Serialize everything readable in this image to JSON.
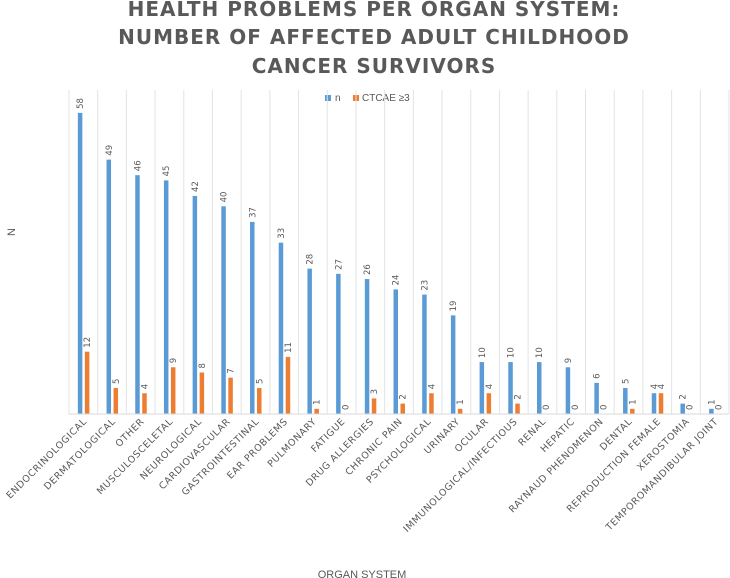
{
  "chart_data": {
    "type": "bar",
    "title_lines": [
      "HEALTH PROBLEMS PER ORGAN SYSTEM:",
      "NUMBER OF AFFECTED ADULT CHILDHOOD",
      "CANCER SURVIVORS"
    ],
    "xlabel": "ORGAN SYSTEM",
    "ylabel": "N",
    "ylim": [
      0,
      60
    ],
    "grid": "vertical-category-separators",
    "legend_position": "top",
    "categories": [
      "ENDOCRINOLOGICAL",
      "DERMATOLOGICAL",
      "OTHER",
      "MUSCULOSCELETAL",
      "NEUROLOGICAL",
      "CARDIOVASCULAR",
      "GASTROINTESTINAL",
      "EAR PROBLEMS",
      "PULMONARY",
      "FATIGUE",
      "DRUG ALLERGIES",
      "CHRONIC PAIN",
      "PSYCHOLOGICAL",
      "URINARY",
      "OCULAR",
      "IMMUNOLOGICAL/INFECTIOUS",
      "RENAL",
      "HEPATIC",
      "RAYNAUD PHENOMENON",
      "DENTAL",
      "REPRODUCTION FEMALE",
      "XEROSTOMIA",
      "TEMPOROMANDIBULAR JOINT"
    ],
    "series": [
      {
        "name": "n",
        "color": "#5B9BD5",
        "values": [
          58,
          49,
          46,
          45,
          42,
          40,
          37,
          33,
          28,
          27,
          26,
          24,
          23,
          19,
          10,
          10,
          10,
          9,
          6,
          5,
          4,
          2,
          1
        ]
      },
      {
        "name": "CTCAE ≥3",
        "color": "#ED7D31",
        "values": [
          12,
          5,
          4,
          9,
          8,
          7,
          5,
          11,
          1,
          0,
          3,
          2,
          4,
          1,
          4,
          2,
          0,
          0,
          0,
          1,
          4,
          0,
          0
        ]
      }
    ]
  }
}
